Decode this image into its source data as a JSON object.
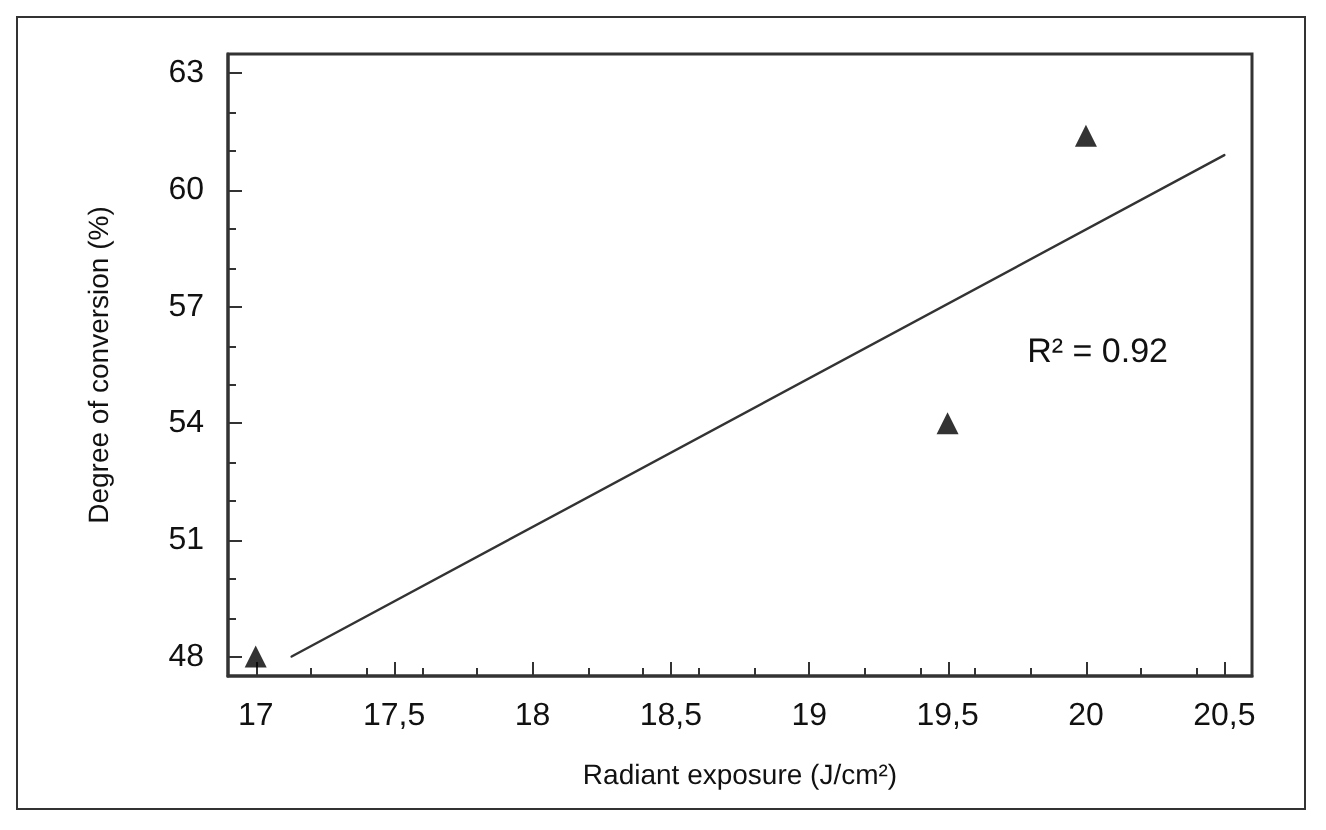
{
  "chart_data": {
    "type": "scatter",
    "xlabel": "Radiant exposure (J/cm²)",
    "ylabel": "Degree of conversion (%)",
    "xlim": [
      16.9,
      20.6
    ],
    "xticks": [
      17,
      {
        "value": 17.5,
        "label": "17,5"
      },
      18,
      {
        "value": 18.5,
        "label": "18,5"
      },
      19,
      {
        "value": 19.5,
        "label": "19,5"
      },
      20,
      {
        "value": 20.5,
        "label": "20,5"
      }
    ],
    "ylim": [
      47.5,
      63.5
    ],
    "yticks": [
      48,
      51,
      54,
      57,
      60,
      63
    ],
    "series": [
      {
        "color": "#000000",
        "marker": "triangle",
        "x": [
          17,
          19.5,
          20
        ],
        "values": [
          48,
          54,
          61.4
        ]
      },
      {
        "type": "line",
        "color": "#333333",
        "marker": "none",
        "line_style": "solid",
        "x": [
          17.13,
          20.5
        ],
        "values": [
          48,
          60.9
        ]
      }
    ],
    "annotations": [
      "R² = 0.92"
    ],
    "grid": false
  }
}
